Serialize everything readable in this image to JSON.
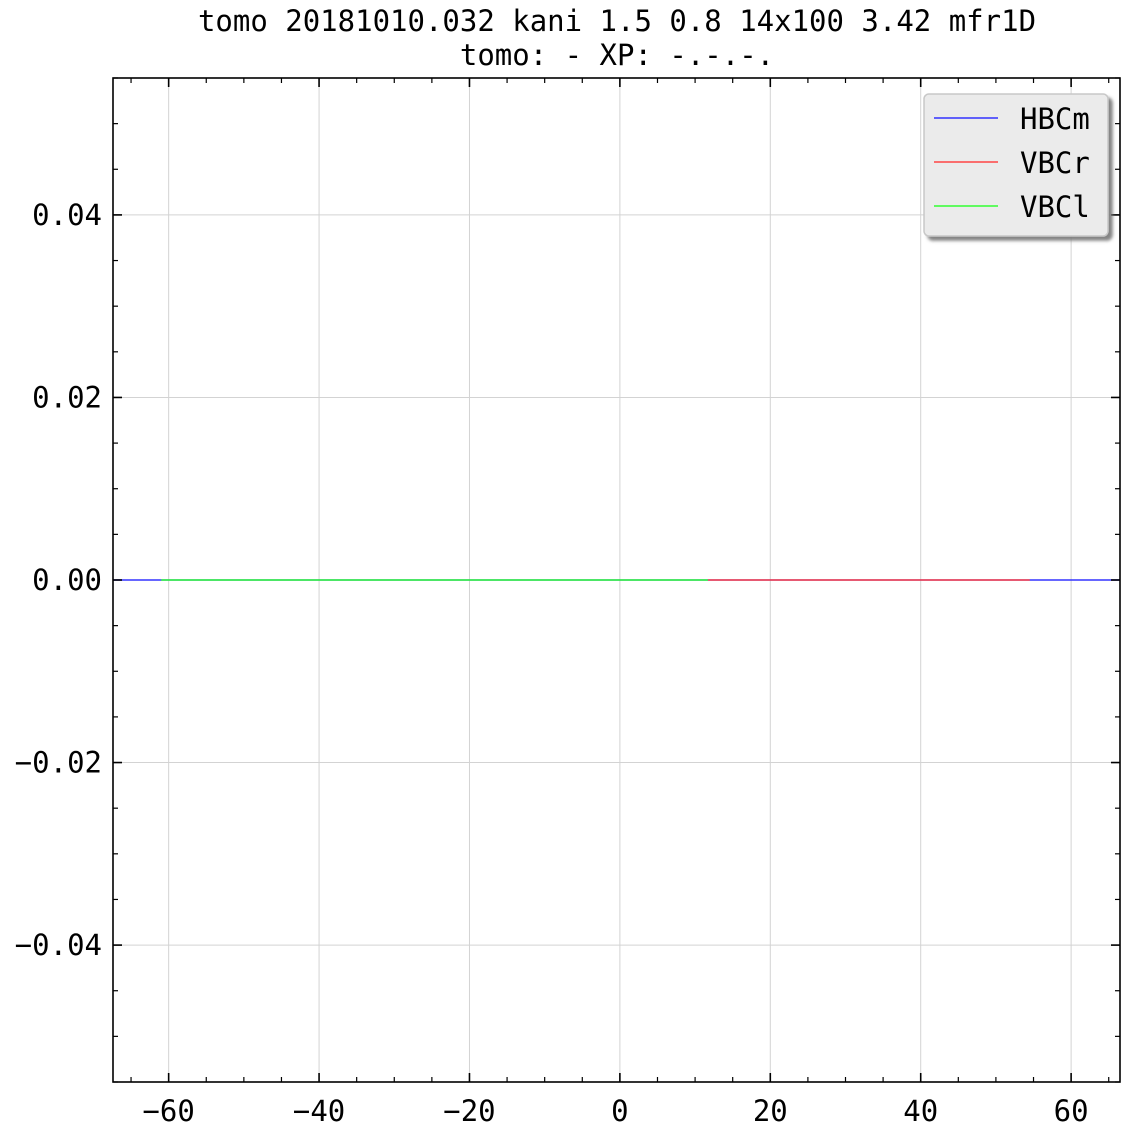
{
  "chart_data": {
    "type": "line",
    "title_lines": [
      "tomo 20181010.032 kani 1.5 0.8 14x100 3.42 mfr1D",
      "tomo: -   XP: -.-.-."
    ],
    "xlim": [
      -67.4,
      66.5
    ],
    "ylim": [
      -0.055,
      0.055
    ],
    "xticks": [
      -60,
      -40,
      -20,
      0,
      20,
      40,
      60
    ],
    "xtick_labels": [
      "−60",
      "−40",
      "−20",
      "0",
      "20",
      "40",
      "60"
    ],
    "yticks": [
      -0.04,
      -0.02,
      0.0,
      0.02,
      0.04
    ],
    "ytick_labels": [
      "−0.04",
      "−0.02",
      "0.00",
      "0.02",
      "0.04"
    ],
    "grid": true,
    "legend_position": "top-right",
    "series": [
      {
        "name": "HBCm",
        "color": "#3333ff",
        "x": [
          -67.4,
          66.5
        ],
        "y": [
          0,
          0
        ]
      },
      {
        "name": "VBCr",
        "color": "#ff4444",
        "x": [
          11.7,
          54.5
        ],
        "y": [
          0,
          0
        ]
      },
      {
        "name": "VBCl",
        "color": "#33ff33",
        "x": [
          -61.0,
          11.7
        ],
        "y": [
          0,
          0
        ]
      }
    ]
  }
}
